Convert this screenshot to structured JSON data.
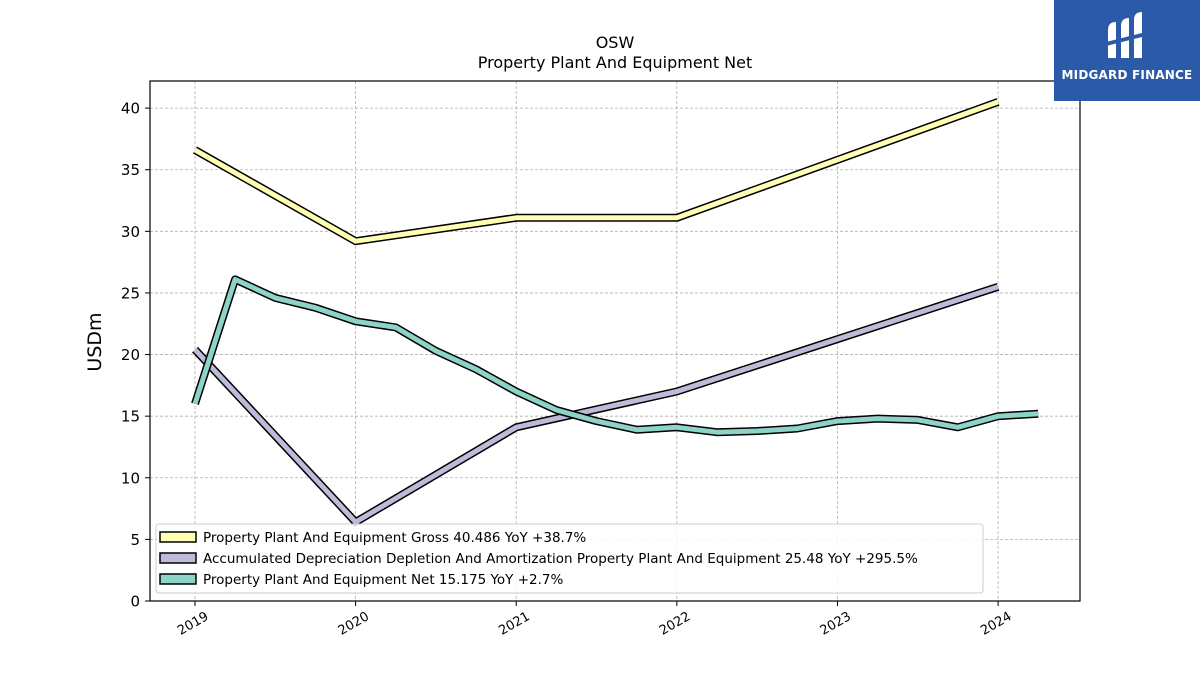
{
  "brand": {
    "name": "MIDGARD FINANCE",
    "color": "#2b5aa8"
  },
  "chart_data": {
    "type": "line",
    "title": "OSW",
    "subtitle": "Property Plant And Equipment Net",
    "ylabel": "USDm",
    "xlabel": "",
    "ylim": [
      0,
      42.2
    ],
    "xlim": [
      2018.72,
      2024.51
    ],
    "yticks": [
      0,
      5,
      10,
      15,
      20,
      25,
      30,
      35,
      40
    ],
    "xticks": [
      2019,
      2020,
      2021,
      2022,
      2023,
      2024
    ],
    "grid": true,
    "legend_position": "lower-left",
    "series": [
      {
        "name": "Property Plant And Equipment Gross",
        "legend_label": "Property Plant And Equipment Gross  40.486 YoY +38.7%",
        "color": "#ffffb3",
        "x": [
          2019.0,
          2020.0,
          2021.0,
          2022.0,
          2024.0
        ],
        "y": [
          36.6,
          29.2,
          31.1,
          31.1,
          40.5
        ]
      },
      {
        "name": "Accumulated Depreciation Depletion And Amortization Property Plant And Equipment",
        "legend_label": "Accumulated Depreciation Depletion And Amortization Property Plant And Equipment  25.48 YoY +295.5%",
        "color": "#bebada",
        "x": [
          2019.0,
          2020.0,
          2021.0,
          2022.0,
          2024.0
        ],
        "y": [
          20.4,
          6.4,
          14.1,
          17.0,
          25.5
        ]
      },
      {
        "name": "Property Plant And Equipment Net",
        "legend_label": "Property Plant And Equipment Net  15.175 YoY +2.7%",
        "color": "#8dd3c7",
        "x": [
          2019.0,
          2019.25,
          2019.5,
          2019.75,
          2020.0,
          2020.25,
          2020.5,
          2020.75,
          2021.0,
          2021.25,
          2021.5,
          2021.75,
          2022.0,
          2022.25,
          2022.5,
          2022.75,
          2023.0,
          2023.25,
          2023.5,
          2023.75,
          2024.0,
          2024.25
        ],
        "y": [
          16.0,
          26.1,
          24.6,
          23.8,
          22.7,
          22.2,
          20.3,
          18.8,
          17.0,
          15.5,
          14.6,
          13.9,
          14.1,
          13.7,
          13.8,
          14.0,
          14.6,
          14.8,
          14.7,
          14.1,
          15.0,
          15.2
        ]
      }
    ]
  }
}
